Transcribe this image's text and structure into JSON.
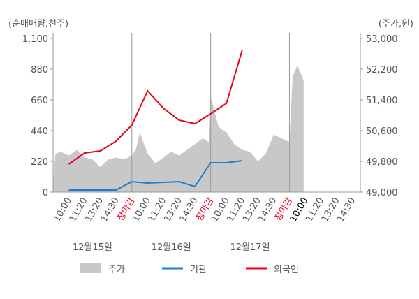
{
  "chart_data": {
    "type": "line",
    "y_unit": "(순매매량,천주)",
    "y2_unit": "(주가,원)",
    "xlim": [
      -1,
      18.5
    ],
    "xticks": [
      {
        "value": 0,
        "label": "10:00"
      },
      {
        "value": 1,
        "label": "11:20"
      },
      {
        "value": 2,
        "label": "13:20"
      },
      {
        "value": 3,
        "label": "14:30"
      },
      {
        "value": 4,
        "label": "장마감",
        "color": "#e8001c"
      },
      {
        "value": 5,
        "label": "10:00"
      },
      {
        "value": 6,
        "label": "11:20"
      },
      {
        "value": 7,
        "label": "13:20"
      },
      {
        "value": 8,
        "label": "14:30"
      },
      {
        "value": 9,
        "label": "장마감",
        "color": "#e8001c"
      },
      {
        "value": 10,
        "label": "10:00"
      },
      {
        "value": 11,
        "label": "11:20"
      },
      {
        "value": 12,
        "label": "13:20"
      },
      {
        "value": 13,
        "label": "14:30"
      },
      {
        "value": 14,
        "label": "장마감",
        "color": "#e8001c"
      },
      {
        "value": 15,
        "label": "10:00",
        "color": "#000000"
      },
      {
        "value": 16,
        "label": "11:20"
      },
      {
        "value": 17,
        "label": "13:20"
      },
      {
        "value": 18,
        "label": "14:30"
      }
    ],
    "dates": [
      "12월15일",
      "12월16일",
      "12월17일"
    ],
    "ylim": [
      0,
      1100
    ],
    "yticks": [
      0,
      220,
      440,
      660,
      880,
      {
        "value": 1100,
        "label": "1,100"
      }
    ],
    "y2lim": [
      49000,
      53000
    ],
    "y2ticks": [
      {
        "value": 49000,
        "label": "49,000"
      },
      {
        "value": 49800,
        "label": "49,800"
      },
      {
        "value": 50600,
        "label": "50,600"
      },
      {
        "value": 51400,
        "label": "51,400"
      },
      {
        "value": 52200,
        "label": "52,200"
      },
      {
        "value": 53000,
        "label": "53,000"
      }
    ],
    "series": [
      {
        "name": "주가",
        "type": "area",
        "axis": "y2",
        "color": "#c8c8c8",
        "x": [
          -1,
          -0.85,
          -0.5,
          0,
          0.5,
          1,
          1.5,
          2,
          2.5,
          3,
          3.5,
          4,
          4.25,
          4.5,
          5,
          5.5,
          6,
          6.5,
          7,
          7.5,
          8,
          8.5,
          8.9,
          9,
          9.5,
          10,
          10.5,
          11,
          11.5,
          12,
          12.5,
          13,
          13.5,
          14,
          14.2,
          14.5,
          14.9
        ],
        "values": [
          49300,
          50000,
          50050,
          49950,
          50100,
          49900,
          49850,
          49650,
          49850,
          49900,
          49850,
          49950,
          50100,
          50550,
          50000,
          49750,
          49900,
          50050,
          49950,
          50100,
          50250,
          50400,
          50300,
          51500,
          50700,
          50550,
          50250,
          50100,
          50050,
          49800,
          50000,
          50500,
          50400,
          50300,
          52000,
          52300,
          51900
        ]
      },
      {
        "name": "기관",
        "color": "#1a7fd0",
        "x": [
          0,
          1,
          2,
          3,
          4,
          5,
          6,
          7,
          8,
          9,
          10,
          11
        ],
        "values": [
          15,
          15,
          15,
          15,
          75,
          65,
          70,
          75,
          40,
          210,
          210,
          225
        ]
      },
      {
        "name": "외국인",
        "color": "#e8001c",
        "x": [
          0,
          1,
          2,
          3,
          4,
          5,
          6,
          7,
          8,
          9,
          10,
          11
        ],
        "values": [
          200,
          280,
          295,
          365,
          480,
          725,
          600,
          515,
          490,
          560,
          635,
          1015
        ]
      }
    ]
  }
}
